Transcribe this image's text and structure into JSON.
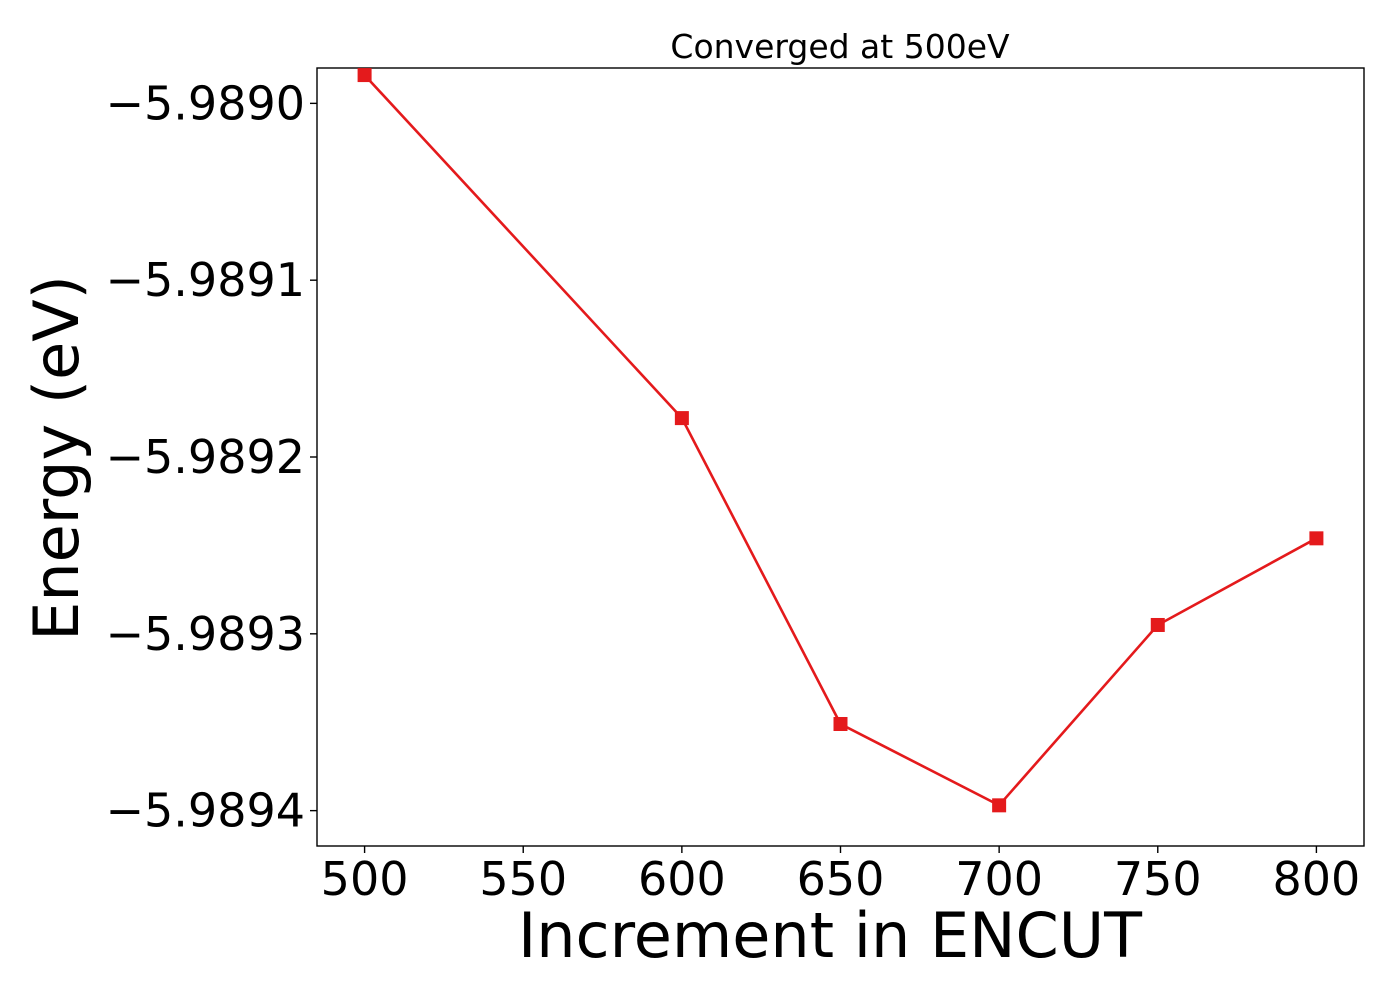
{
  "chart_data": {
    "type": "line",
    "title": "Converged at 500eV",
    "xlabel": "Increment in ENCUT",
    "ylabel": "Energy (eV)",
    "xlim": [
      485,
      815
    ],
    "ylim": [
      -5.98942,
      -5.98898
    ],
    "x_ticks": [
      500,
      550,
      600,
      650,
      700,
      750,
      800
    ],
    "x_tick_labels": [
      "500",
      "550",
      "600",
      "650",
      "700",
      "750",
      "800"
    ],
    "y_ticks": [
      -5.989,
      -5.9891,
      -5.9892,
      -5.9893,
      -5.9894
    ],
    "y_tick_labels": [
      "−5.9890",
      "−5.9891",
      "−5.9892",
      "−5.9893",
      "−5.9894"
    ],
    "grid": false,
    "legend": "none",
    "marker": "square",
    "color": "#e41a1c",
    "series": [
      {
        "x": [
          500,
          600,
          650,
          700,
          750,
          800
        ],
        "values": [
          -5.988984,
          -5.989178,
          -5.989351,
          -5.989397,
          -5.989295,
          -5.989246
        ]
      }
    ]
  }
}
